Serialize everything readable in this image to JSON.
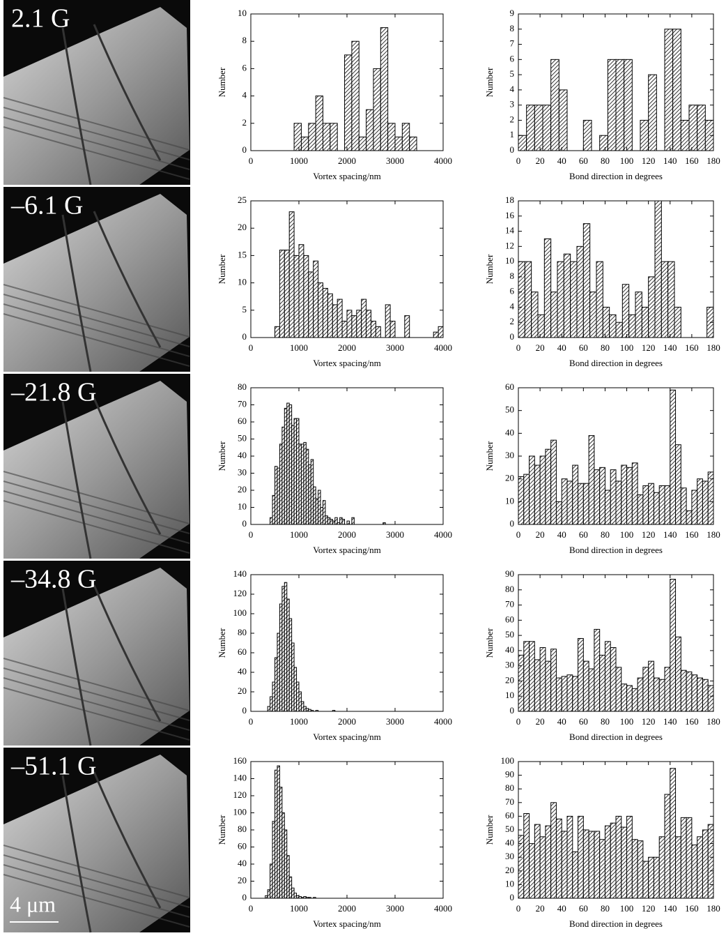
{
  "panels": [
    {
      "label": "2.1 G"
    },
    {
      "label": "–6.1 G"
    },
    {
      "label": "–21.8 G"
    },
    {
      "label": "–34.8 G"
    },
    {
      "label": "–51.1 G"
    }
  ],
  "scale_bar": "4 μm",
  "chart_data": [
    {
      "type": "histogram",
      "xlabel": "Vortex spacing/nm",
      "ylabel": "Number",
      "xlim": [
        0,
        4000
      ],
      "ylim": [
        0,
        10
      ],
      "xticks": [
        0,
        1000,
        2000,
        3000,
        4000
      ],
      "yticks": [
        0,
        2,
        4,
        6,
        8,
        10
      ],
      "bins": [
        900,
        1050,
        1200,
        1350,
        1500,
        1650,
        1800,
        1950,
        2100,
        2250,
        2400,
        2550,
        2700,
        2850,
        3000,
        3150,
        3300,
        3450
      ],
      "counts": [
        2,
        1,
        2,
        4,
        2,
        2,
        0,
        7,
        8,
        1,
        3,
        6,
        9,
        2,
        1,
        2,
        1
      ]
    },
    {
      "type": "histogram",
      "xlabel": "Bond direction in degrees",
      "ylabel": "Number",
      "xlim": [
        0,
        180
      ],
      "ylim": [
        0,
        9
      ],
      "xticks": [
        0,
        20,
        40,
        60,
        80,
        100,
        120,
        140,
        160,
        180
      ],
      "yticks": [
        0,
        1,
        2,
        3,
        4,
        5,
        6,
        7,
        8,
        9
      ],
      "bins": [
        0,
        7.5,
        15,
        22.5,
        30,
        37.5,
        45,
        52.5,
        60,
        67.5,
        75,
        82.5,
        90,
        97.5,
        105,
        112.5,
        120,
        127.5,
        135,
        142.5,
        150,
        157.5,
        165,
        172.5,
        180
      ],
      "counts": [
        1,
        3,
        3,
        3,
        6,
        4,
        0,
        0,
        2,
        0,
        1,
        6,
        6,
        6,
        0,
        2,
        5,
        0,
        8,
        8,
        2,
        3,
        3,
        2
      ]
    },
    {
      "type": "histogram",
      "xlabel": "Vortex spacing/nm",
      "ylabel": "Number",
      "xlim": [
        0,
        4000
      ],
      "ylim": [
        0,
        25
      ],
      "xticks": [
        0,
        1000,
        2000,
        3000,
        4000
      ],
      "yticks": [
        0,
        5,
        10,
        15,
        20,
        25
      ],
      "bins": [
        500,
        600,
        700,
        800,
        900,
        1000,
        1100,
        1200,
        1300,
        1400,
        1500,
        1600,
        1700,
        1800,
        1900,
        2000,
        2100,
        2200,
        2300,
        2400,
        2500,
        2600,
        2700,
        2800,
        2900,
        3000,
        3100,
        3200,
        3300,
        3400,
        3500,
        3600,
        3700,
        3800,
        3900,
        4000
      ],
      "counts": [
        2,
        16,
        16,
        23,
        15,
        17,
        15,
        12,
        14,
        10,
        9,
        8,
        6,
        7,
        3,
        5,
        4,
        5,
        7,
        5,
        3,
        2,
        0,
        6,
        3,
        0,
        0,
        4,
        0,
        0,
        0,
        0,
        0,
        1,
        2
      ]
    },
    {
      "type": "histogram",
      "xlabel": "Bond direction in degrees",
      "ylabel": "Number",
      "xlim": [
        0,
        180
      ],
      "ylim": [
        0,
        18
      ],
      "xticks": [
        0,
        20,
        40,
        60,
        80,
        100,
        120,
        140,
        160,
        180
      ],
      "yticks": [
        0,
        2,
        4,
        6,
        8,
        10,
        12,
        14,
        16,
        18
      ],
      "bins": [
        0,
        6,
        12,
        18,
        24,
        30,
        36,
        42,
        48,
        54,
        60,
        66,
        72,
        78,
        84,
        90,
        96,
        102,
        108,
        114,
        120,
        126,
        132,
        138,
        144,
        150,
        156,
        162,
        168,
        174,
        180
      ],
      "counts": [
        10,
        10,
        6,
        3,
        13,
        6,
        10,
        11,
        10,
        12,
        15,
        6,
        10,
        4,
        3,
        2,
        7,
        3,
        6,
        4,
        8,
        18,
        10,
        10,
        4,
        0,
        0,
        0,
        0,
        4
      ]
    },
    {
      "type": "histogram",
      "xlabel": "Vortex spacing/nm",
      "ylabel": "Number",
      "xlim": [
        0,
        4000
      ],
      "ylim": [
        0,
        80
      ],
      "xticks": [
        0,
        1000,
        2000,
        3000,
        4000
      ],
      "yticks": [
        0,
        10,
        20,
        30,
        40,
        50,
        60,
        70,
        80
      ],
      "bins": [
        400,
        450,
        500,
        550,
        600,
        650,
        700,
        750,
        800,
        850,
        900,
        950,
        1000,
        1050,
        1100,
        1150,
        1200,
        1250,
        1300,
        1350,
        1400,
        1450,
        1500,
        1550,
        1600,
        1650,
        1700,
        1750,
        1800,
        1850,
        1900,
        1950,
        2000,
        2050,
        2100,
        2150,
        2200,
        2250,
        2300,
        2350,
        2400,
        2450,
        2500,
        2550,
        2600,
        2650,
        2700,
        2750,
        2800,
        2850
      ],
      "counts": [
        4,
        17,
        34,
        33,
        47,
        57,
        68,
        71,
        70,
        58,
        62,
        62,
        47,
        47,
        48,
        44,
        35,
        38,
        22,
        15,
        20,
        10,
        14,
        5,
        4,
        3,
        2,
        4,
        1,
        4,
        3,
        0,
        2,
        0,
        4,
        0,
        0,
        0,
        0,
        0,
        0,
        0,
        0,
        0,
        0,
        0,
        0,
        1,
        0
      ]
    },
    {
      "type": "histogram",
      "xlabel": "Bond direction in degrees",
      "ylabel": "Number",
      "xlim": [
        0,
        180
      ],
      "ylim": [
        0,
        60
      ],
      "xticks": [
        0,
        20,
        40,
        60,
        80,
        100,
        120,
        140,
        160,
        180
      ],
      "yticks": [
        0,
        10,
        20,
        30,
        40,
        50,
        60
      ],
      "bins": [
        0,
        5,
        10,
        15,
        20,
        25,
        30,
        35,
        40,
        45,
        50,
        55,
        60,
        65,
        70,
        75,
        80,
        85,
        90,
        95,
        100,
        105,
        110,
        115,
        120,
        125,
        130,
        135,
        140,
        145,
        150,
        155,
        160,
        165,
        170,
        175,
        180
      ],
      "counts": [
        21,
        22,
        30,
        26,
        30,
        33,
        37,
        10,
        20,
        19,
        26,
        18,
        18,
        39,
        24,
        25,
        15,
        24,
        19,
        26,
        25,
        27,
        13,
        17,
        18,
        14,
        17,
        17,
        59,
        35,
        16,
        6,
        15,
        20,
        19,
        23
      ]
    },
    {
      "type": "histogram",
      "xlabel": "Vortex spacing/nm",
      "ylabel": "Number",
      "xlim": [
        0,
        4000
      ],
      "ylim": [
        0,
        140
      ],
      "xticks": [
        0,
        1000,
        2000,
        3000,
        4000
      ],
      "yticks": [
        0,
        20,
        40,
        60,
        80,
        100,
        120,
        140
      ],
      "bins": [
        350,
        400,
        450,
        500,
        550,
        600,
        650,
        700,
        750,
        800,
        850,
        900,
        950,
        1000,
        1050,
        1100,
        1150,
        1200,
        1250,
        1300,
        1350,
        1400,
        1450,
        1500,
        1550,
        1600,
        1650,
        1700,
        1750
      ],
      "counts": [
        5,
        15,
        30,
        55,
        80,
        110,
        128,
        132,
        115,
        95,
        70,
        45,
        30,
        20,
        10,
        5,
        3,
        2,
        1,
        0,
        1,
        0,
        0,
        0,
        0,
        0,
        0,
        1
      ]
    },
    {
      "type": "histogram",
      "xlabel": "Bond direction in degrees",
      "ylabel": "Number",
      "xlim": [
        0,
        180
      ],
      "ylim": [
        0,
        90
      ],
      "xticks": [
        0,
        20,
        40,
        60,
        80,
        100,
        120,
        140,
        160,
        180
      ],
      "yticks": [
        0,
        10,
        20,
        30,
        40,
        50,
        60,
        70,
        80,
        90
      ],
      "bins": [
        0,
        5,
        10,
        15,
        20,
        25,
        30,
        35,
        40,
        45,
        50,
        55,
        60,
        65,
        70,
        75,
        80,
        85,
        90,
        95,
        100,
        105,
        110,
        115,
        120,
        125,
        130,
        135,
        140,
        145,
        150,
        155,
        160,
        165,
        170,
        175,
        180
      ],
      "counts": [
        37,
        46,
        46,
        34,
        42,
        33,
        41,
        22,
        23,
        24,
        23,
        48,
        33,
        28,
        54,
        37,
        46,
        42,
        29,
        18,
        17,
        15,
        22,
        29,
        33,
        22,
        21,
        29,
        87,
        49,
        27,
        26,
        24,
        22,
        21,
        17
      ]
    },
    {
      "type": "histogram",
      "xlabel": "Vortex spacing/nm",
      "ylabel": "Number",
      "xlim": [
        0,
        4000
      ],
      "ylim": [
        0,
        160
      ],
      "xticks": [
        0,
        1000,
        2000,
        3000,
        4000
      ],
      "yticks": [
        0,
        20,
        40,
        60,
        80,
        100,
        120,
        140,
        160
      ],
      "bins": [
        300,
        350,
        400,
        450,
        500,
        550,
        600,
        650,
        700,
        750,
        800,
        850,
        900,
        950,
        1000,
        1050,
        1100,
        1150,
        1200,
        1250,
        1300,
        1350
      ],
      "counts": [
        3,
        10,
        40,
        90,
        150,
        155,
        130,
        100,
        80,
        50,
        25,
        12,
        6,
        3,
        2,
        1,
        2,
        1,
        1,
        0,
        1
      ]
    },
    {
      "type": "histogram",
      "xlabel": "Bond direction in degrees",
      "ylabel": "Number",
      "xlim": [
        0,
        180
      ],
      "ylim": [
        0,
        100
      ],
      "xticks": [
        0,
        20,
        40,
        60,
        80,
        100,
        120,
        140,
        160,
        180
      ],
      "yticks": [
        0,
        10,
        20,
        30,
        40,
        50,
        60,
        70,
        80,
        90,
        100
      ],
      "bins": [
        0,
        5,
        10,
        15,
        20,
        25,
        30,
        35,
        40,
        45,
        50,
        55,
        60,
        65,
        70,
        75,
        80,
        85,
        90,
        95,
        100,
        105,
        110,
        115,
        120,
        125,
        130,
        135,
        140,
        145,
        150,
        155,
        160,
        165,
        170,
        175,
        180
      ],
      "counts": [
        46,
        62,
        40,
        54,
        45,
        53,
        70,
        58,
        49,
        60,
        34,
        60,
        50,
        49,
        49,
        43,
        53,
        55,
        60,
        52,
        60,
        43,
        42,
        27,
        30,
        30,
        45,
        76,
        95,
        45,
        59,
        59,
        39,
        45,
        50,
        54
      ]
    }
  ]
}
